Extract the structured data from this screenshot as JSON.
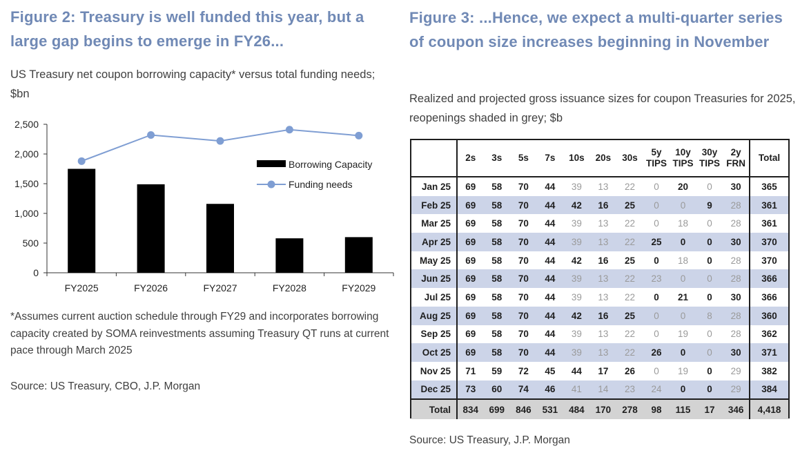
{
  "left": {
    "title": "Figure 2: Treasury is well funded this year, but a large gap begins to emerge in FY26...",
    "subtitle": "US Treasury net coupon borrowing capacity* versus total funding needs; $bn",
    "footnote": "*Assumes current auction schedule through FY29 and incorporates borrowing capacity created by SOMA reinvestments assuming Treasury QT runs at current pace through March 2025",
    "source": "Source: US Treasury, CBO, J.P. Morgan"
  },
  "right": {
    "title": "Figure 3: ...Hence, we expect a multi-quarter series of coupon size increases beginning in November",
    "subtitle": "Realized and projected gross issuance sizes for coupon Treasuries for 2025, reopenings shaded in grey; $b",
    "source": "Source: US Treasury, J.P. Morgan"
  },
  "chart_data": [
    {
      "type": "bar+line",
      "categories": [
        "FY2025",
        "FY2026",
        "FY2027",
        "FY2028",
        "FY2029"
      ],
      "series": [
        {
          "name": "Borrowing Capacity",
          "type": "bar",
          "color": "#000000",
          "values": [
            1750,
            1490,
            1160,
            580,
            600
          ]
        },
        {
          "name": "Funding needs",
          "type": "line",
          "color": "#7f9ed3",
          "values": [
            1880,
            2320,
            2220,
            2410,
            2310
          ]
        }
      ],
      "yticks": [
        "0",
        "500",
        "1,000",
        "1,500",
        "2,000",
        "2,500"
      ],
      "ylim": [
        0,
        2500
      ],
      "legend_position": "right"
    },
    {
      "type": "table",
      "columns": [
        "2s",
        "3s",
        "5s",
        "7s",
        "10s",
        "20s",
        "30s",
        "5y TIPS",
        "10y TIPS",
        "30y TIPS",
        "2y FRN",
        "Total"
      ],
      "rows": [
        {
          "month": "Jan 25",
          "shaded": false,
          "values": [
            "69",
            "58",
            "70",
            "44",
            "39",
            "13",
            "22",
            "0",
            "20",
            "0",
            "30",
            "365"
          ],
          "reopen": [
            4,
            5,
            6,
            7,
            9
          ]
        },
        {
          "month": "Feb 25",
          "shaded": true,
          "values": [
            "69",
            "58",
            "70",
            "44",
            "42",
            "16",
            "25",
            "0",
            "0",
            "9",
            "28",
            "361"
          ],
          "reopen": [
            7,
            8,
            10
          ]
        },
        {
          "month": "Mar 25",
          "shaded": false,
          "values": [
            "69",
            "58",
            "70",
            "44",
            "39",
            "13",
            "22",
            "0",
            "18",
            "0",
            "28",
            "361"
          ],
          "reopen": [
            4,
            5,
            6,
            7,
            8,
            9,
            10
          ]
        },
        {
          "month": "Apr 25",
          "shaded": true,
          "values": [
            "69",
            "58",
            "70",
            "44",
            "39",
            "13",
            "22",
            "25",
            "0",
            "0",
            "30",
            "370"
          ],
          "reopen": [
            4,
            5,
            6
          ]
        },
        {
          "month": "May 25",
          "shaded": false,
          "values": [
            "69",
            "58",
            "70",
            "44",
            "42",
            "16",
            "25",
            "0",
            "18",
            "0",
            "28",
            "370"
          ],
          "reopen": [
            8,
            10
          ]
        },
        {
          "month": "Jun 25",
          "shaded": true,
          "values": [
            "69",
            "58",
            "70",
            "44",
            "39",
            "13",
            "22",
            "23",
            "0",
            "0",
            "28",
            "366"
          ],
          "reopen": [
            4,
            5,
            6,
            7,
            8,
            9,
            10
          ]
        },
        {
          "month": "Jul 25",
          "shaded": false,
          "values": [
            "69",
            "58",
            "70",
            "44",
            "39",
            "13",
            "22",
            "0",
            "21",
            "0",
            "30",
            "366"
          ],
          "reopen": [
            4,
            5,
            6
          ]
        },
        {
          "month": "Aug 25",
          "shaded": true,
          "values": [
            "69",
            "58",
            "70",
            "44",
            "42",
            "16",
            "25",
            "0",
            "0",
            "8",
            "28",
            "360"
          ],
          "reopen": [
            7,
            8,
            9,
            10
          ]
        },
        {
          "month": "Sep 25",
          "shaded": false,
          "values": [
            "69",
            "58",
            "70",
            "44",
            "39",
            "13",
            "22",
            "0",
            "19",
            "0",
            "28",
            "362"
          ],
          "reopen": [
            4,
            5,
            6,
            7,
            8,
            9,
            10
          ]
        },
        {
          "month": "Oct 25",
          "shaded": true,
          "values": [
            "69",
            "58",
            "70",
            "44",
            "39",
            "13",
            "22",
            "26",
            "0",
            "0",
            "30",
            "371"
          ],
          "reopen": [
            4,
            5,
            6,
            9
          ]
        },
        {
          "month": "Nov 25",
          "shaded": false,
          "values": [
            "71",
            "59",
            "72",
            "45",
            "44",
            "17",
            "26",
            "0",
            "19",
            "0",
            "29",
            "382"
          ],
          "reopen": [
            7,
            8,
            10
          ]
        },
        {
          "month": "Dec 25",
          "shaded": true,
          "values": [
            "73",
            "60",
            "74",
            "46",
            "41",
            "14",
            "23",
            "24",
            "0",
            "0",
            "29",
            "384"
          ],
          "reopen": [
            4,
            5,
            6,
            7,
            10
          ]
        }
      ],
      "total_row": {
        "label": "Total",
        "values": [
          "834",
          "699",
          "846",
          "531",
          "484",
          "170",
          "278",
          "98",
          "115",
          "17",
          "346",
          "4,418"
        ]
      }
    }
  ]
}
